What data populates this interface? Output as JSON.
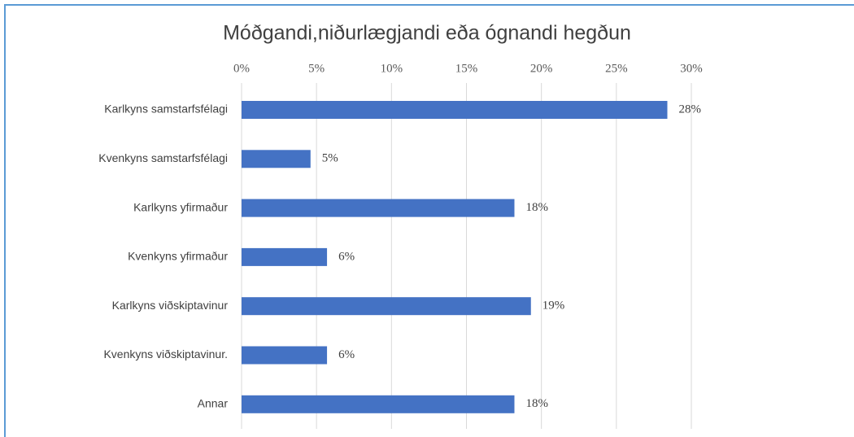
{
  "chart_data": {
    "type": "bar",
    "orientation": "horizontal",
    "title": "Móðgandi,niðurlægjandi eða ógnandi hegðun",
    "categories": [
      "Karlkyns samstarfsfélagi",
      "Kvenkyns samstarfsfélagi",
      "Karlkyns yfirmaður",
      "Kvenkyns yfirmaður",
      "Karlkyns viðskiptavinur",
      "Kvenkyns viðskiptavinur.",
      "Annar"
    ],
    "values": [
      28.4,
      4.6,
      18.2,
      5.7,
      19.3,
      5.7,
      18.2
    ],
    "value_labels": [
      "28%",
      "5%",
      "18%",
      "6%",
      "19%",
      "6%",
      "18%"
    ],
    "color": "#4472c4",
    "xlim": [
      0,
      30
    ],
    "xticks": [
      {
        "value": 0,
        "label": "0%"
      },
      {
        "value": 5,
        "label": "5%"
      },
      {
        "value": 10,
        "label": "10%"
      },
      {
        "value": 15,
        "label": "15%"
      },
      {
        "value": 20,
        "label": "20%"
      },
      {
        "value": 25,
        "label": "25%"
      },
      {
        "value": 30,
        "label": "30%"
      }
    ],
    "grid": true
  }
}
